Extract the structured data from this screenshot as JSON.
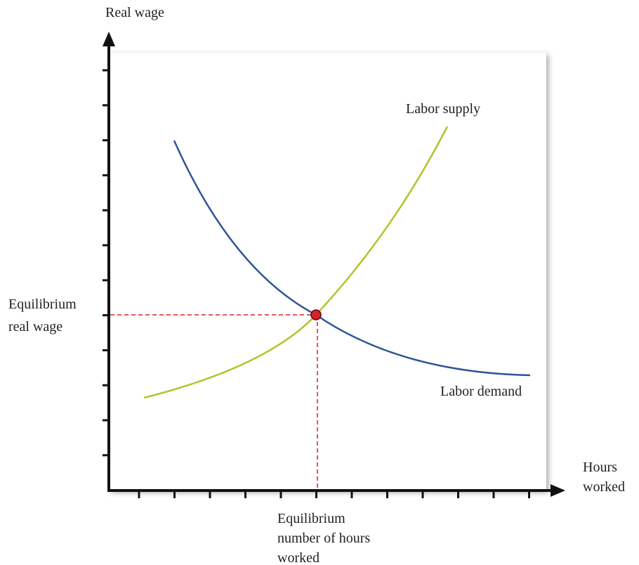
{
  "y_axis_label": "Real wage",
  "x_axis_label": [
    "Hours",
    "worked"
  ],
  "supply_label": "Labor supply",
  "demand_label": "Labor demand",
  "equilibrium_wage_label": [
    "Equilibrium",
    "real wage"
  ],
  "equilibrium_hours_label": [
    "Equilibrium",
    "number of hours",
    "worked"
  ]
}
